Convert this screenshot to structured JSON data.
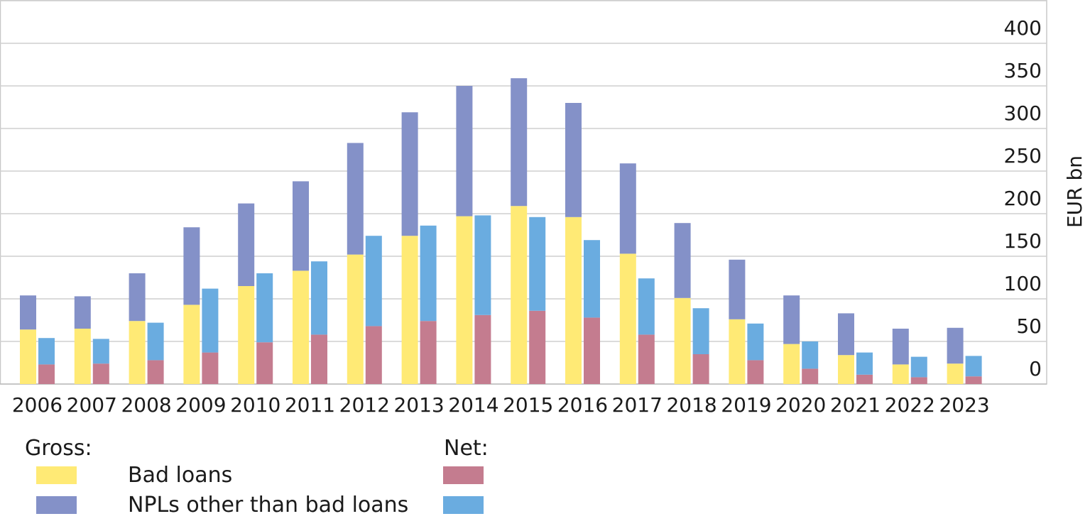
{
  "chart_data": {
    "type": "bar",
    "categories": [
      "2006",
      "2007",
      "2008",
      "2009",
      "2010",
      "2011",
      "2012",
      "2013",
      "2014",
      "2015",
      "2016",
      "2017",
      "2018",
      "2019",
      "2020",
      "2021",
      "2022",
      "2023"
    ],
    "series": [
      {
        "name": "Bad loans",
        "group": "Gross",
        "stack": "gross",
        "color": "#FFEA75",
        "values": [
          64,
          65,
          74,
          93,
          115,
          133,
          152,
          174,
          197,
          209,
          196,
          153,
          101,
          76,
          47,
          34,
          23,
          24
        ]
      },
      {
        "name": "NPLs other than bad loans",
        "group": "Gross",
        "stack": "gross",
        "color": "#8491C8",
        "values": [
          40,
          38,
          56,
          91,
          97,
          105,
          131,
          145,
          153,
          150,
          134,
          106,
          88,
          70,
          57,
          49,
          42,
          42
        ]
      },
      {
        "name": "Bad loans",
        "group": "Net",
        "stack": "net",
        "color": "#C47C8F",
        "values": [
          23,
          24,
          28,
          37,
          49,
          58,
          68,
          74,
          81,
          86,
          78,
          58,
          35,
          28,
          18,
          11,
          8,
          9
        ]
      },
      {
        "name": "NPLs other than bad loans",
        "group": "Net",
        "stack": "net",
        "color": "#6AACE0",
        "values": [
          31,
          29,
          44,
          75,
          81,
          86,
          106,
          112,
          117,
          110,
          91,
          66,
          54,
          43,
          32,
          26,
          24,
          24
        ]
      }
    ],
    "ylabel": "EUR bn",
    "ylim": [
      0,
      420
    ],
    "yticks": [
      "0",
      "50",
      "100",
      "150",
      "200",
      "250",
      "300",
      "350",
      "400"
    ],
    "y_axis_side": "right",
    "grid": true,
    "legend": {
      "placement": "bottom",
      "gross_heading": "Gross:",
      "net_heading": "Net:",
      "rows": [
        "Bad loans",
        "NPLs other than bad loans"
      ]
    }
  }
}
